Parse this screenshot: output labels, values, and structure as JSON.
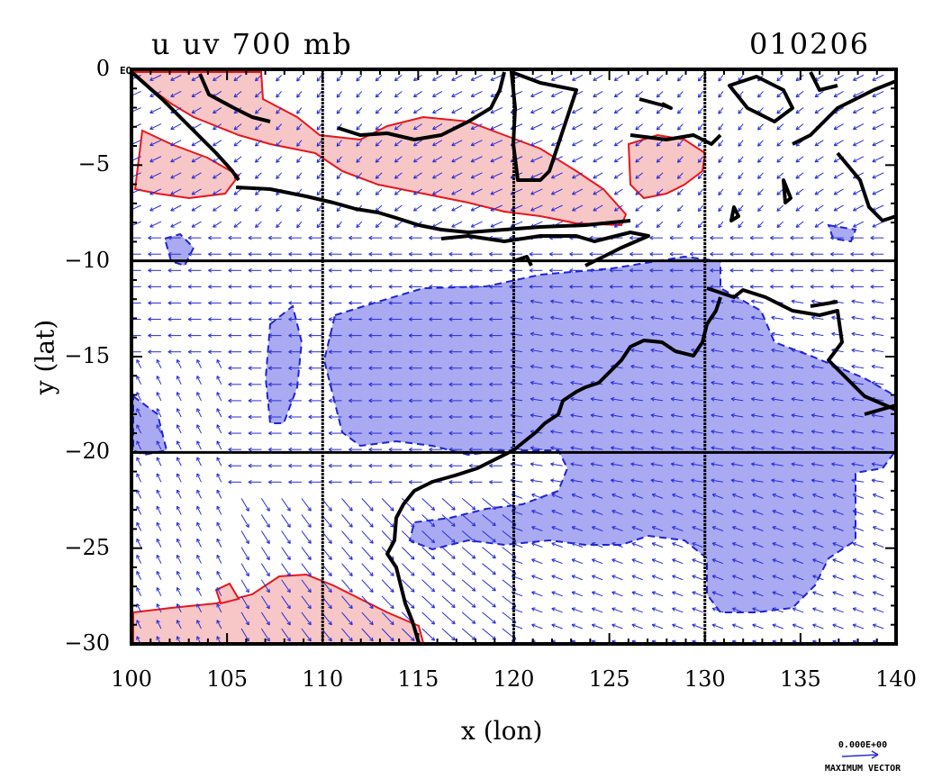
{
  "title_left": "u uv 700 mb",
  "title_right": "010206",
  "eq_label": "EQ",
  "x_axis": {
    "label": "x (lon)",
    "ticks": [
      "100",
      "105",
      "110",
      "115",
      "120",
      "125",
      "130",
      "135",
      "140"
    ],
    "range": [
      100,
      140
    ]
  },
  "y_axis": {
    "label": "y (lat)",
    "ticks": [
      "0",
      "−5",
      "−10",
      "−15",
      "−20",
      "−25",
      "−30"
    ],
    "range": [
      -30,
      0
    ]
  },
  "reference_vector": {
    "value": "0.000E+00",
    "caption": "MAXIMUM VECTOR"
  },
  "colors": {
    "positive_fill": "#f7c6c6",
    "positive_line": "#e8161b",
    "negative_fill": "#a9aaf2",
    "negative_line": "#1e22d6",
    "coast": "#000000",
    "vector": "#2a2dd6"
  }
}
